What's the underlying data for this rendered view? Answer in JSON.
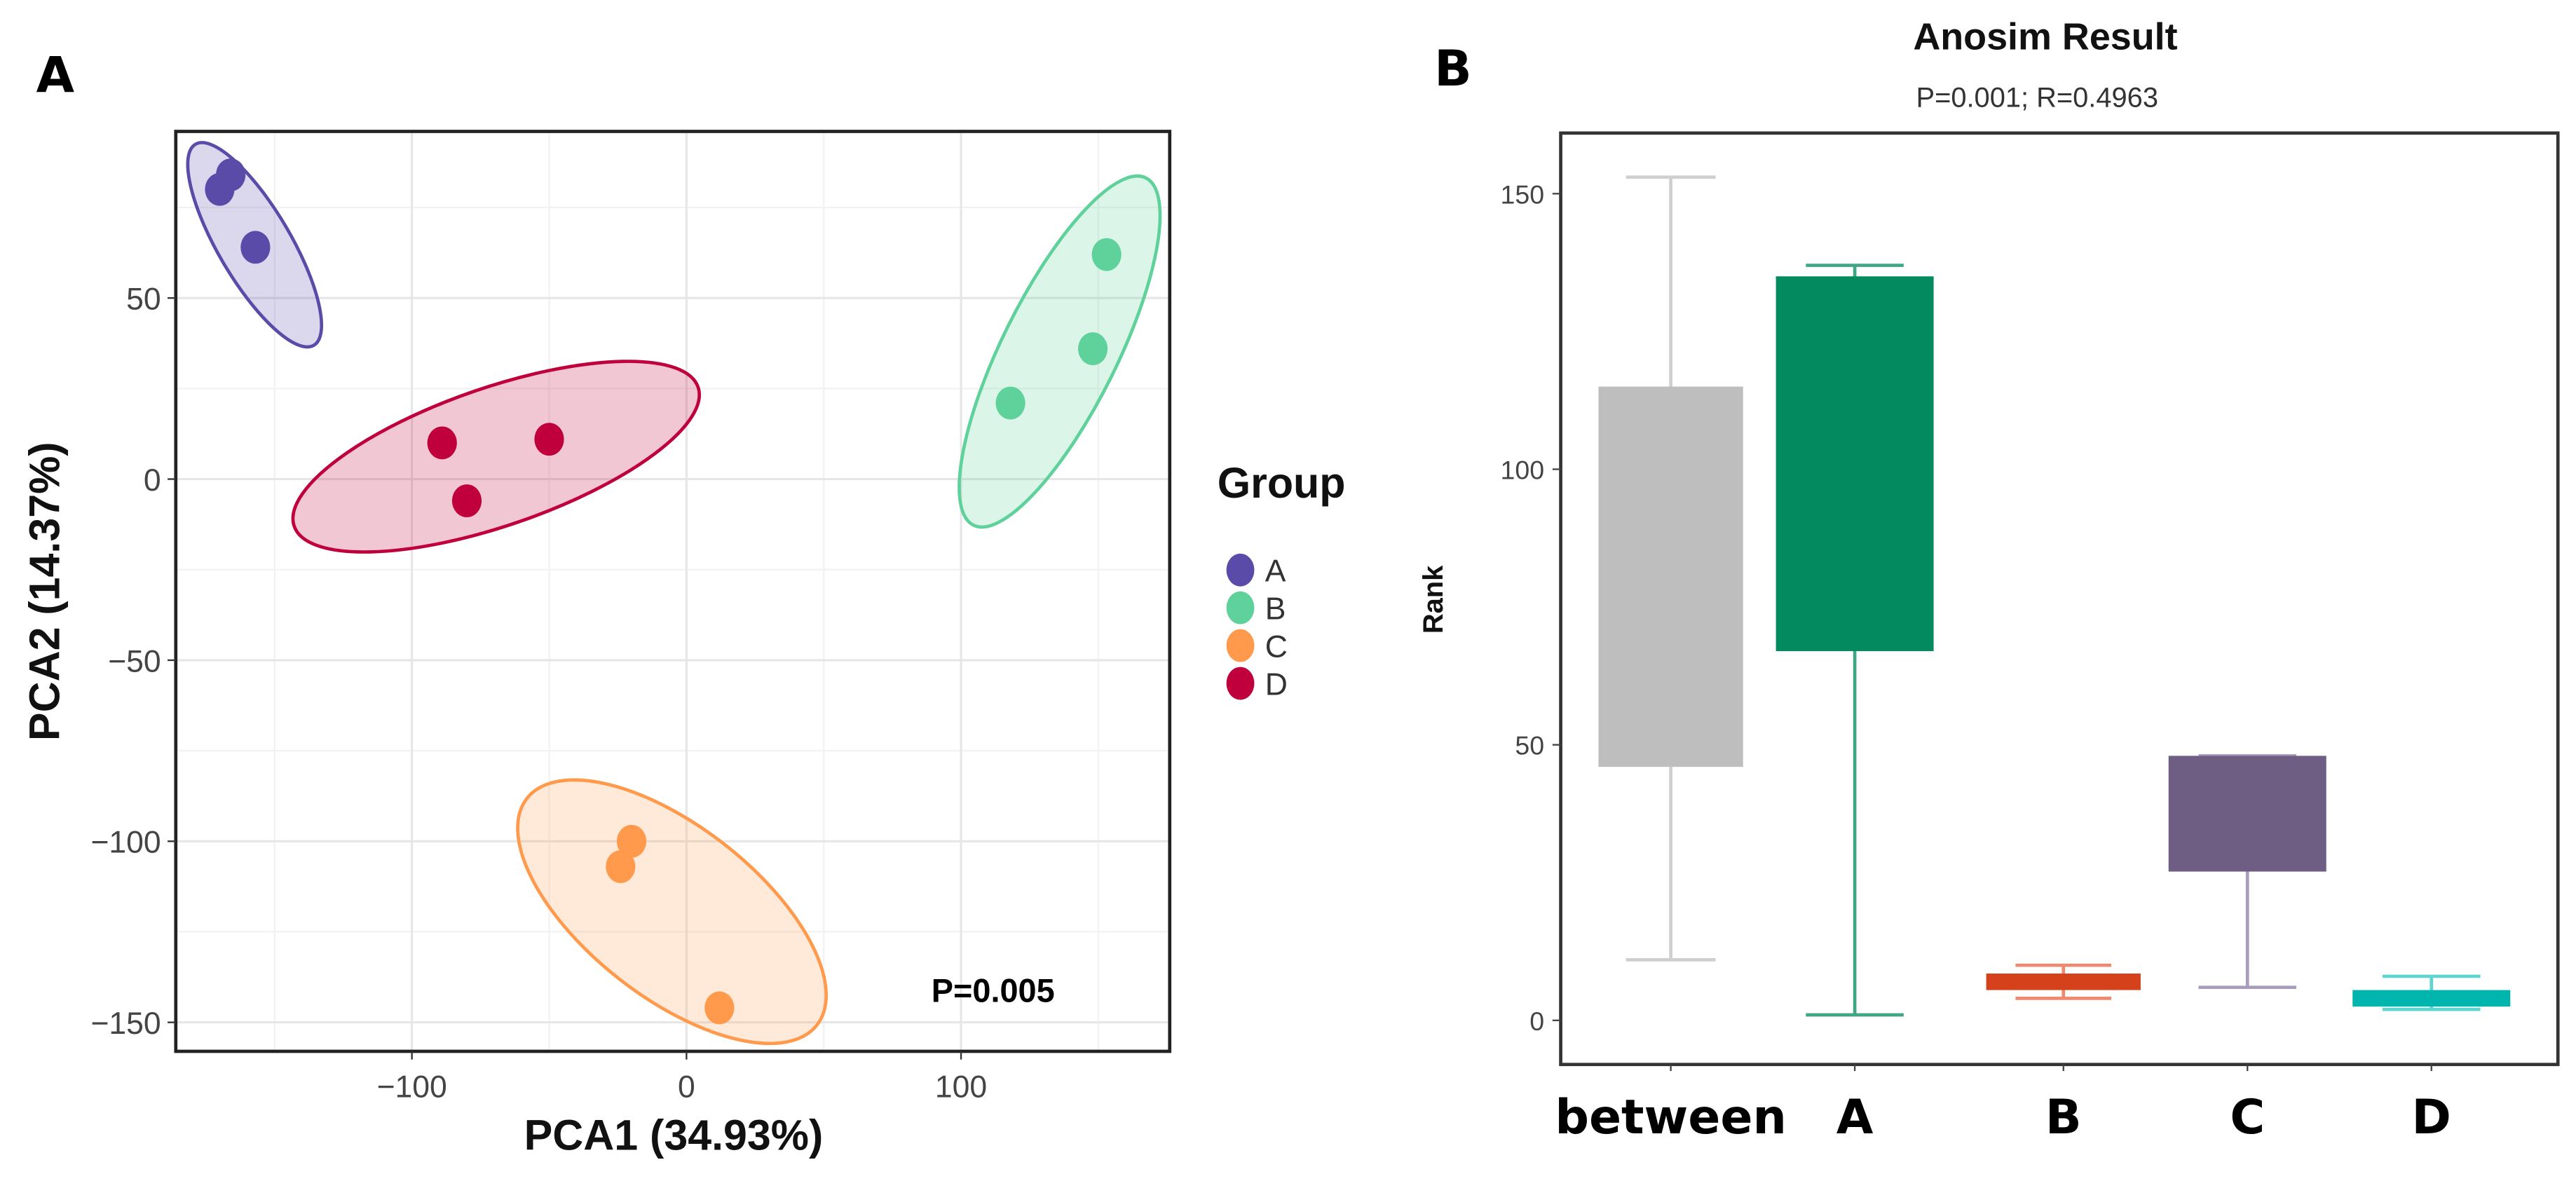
{
  "panel_labels": [
    "A",
    "B"
  ],
  "chart_data": [
    {
      "type": "scatter",
      "title": "",
      "xlabel": "PCA1 (34.93%)",
      "ylabel": "PCA2 (14.37%)",
      "xlim": [
        -186,
        176
      ],
      "ylim": [
        -158,
        96
      ],
      "xticks": [
        -100,
        0,
        100
      ],
      "yticks": [
        50,
        0,
        -50,
        -100,
        -150
      ],
      "grid": true,
      "annotation": "P=0.005",
      "legend": {
        "title": "Group",
        "placement": "right",
        "entries": [
          "A",
          "B",
          "C",
          "D"
        ]
      },
      "colors": {
        "A": "#5B4BA8",
        "B": "#5FD19B",
        "C": "#FF9A4D",
        "D": "#C0003C"
      },
      "series": [
        {
          "name": "A",
          "points": [
            [
              -166,
              84
            ],
            [
              -170,
              80
            ],
            [
              -157,
              64
            ]
          ]
        },
        {
          "name": "B",
          "points": [
            [
              118,
              21
            ],
            [
              148,
              36
            ],
            [
              153,
              62
            ]
          ]
        },
        {
          "name": "C",
          "points": [
            [
              -20,
              -100
            ],
            [
              -24,
              -107
            ],
            [
              12,
              -146
            ]
          ]
        },
        {
          "name": "D",
          "points": [
            [
              -89,
              10
            ],
            [
              -50,
              11
            ],
            [
              -80,
              -6
            ]
          ]
        }
      ]
    },
    {
      "type": "box",
      "title": "Anosim Result",
      "subtitle": "P=0.001; R=0.4963",
      "xlabel": "",
      "ylabel": "Rank",
      "ylim": [
        -8,
        161
      ],
      "yticks": [
        0,
        50,
        100,
        150
      ],
      "categories": [
        "between",
        "A",
        "B",
        "C",
        "D"
      ],
      "boxes": [
        {
          "name": "between",
          "min": 11,
          "q1": 46,
          "q3": 115,
          "max": 153,
          "color": "#BEBEBE",
          "whisker_color": "#CFCFCF"
        },
        {
          "name": "A",
          "min": 1,
          "q1": 67,
          "q3": 135,
          "max": 137,
          "color": "#048A5F",
          "whisker_color": "#3FA583"
        },
        {
          "name": "B",
          "min": 4,
          "q1": 5.5,
          "q3": 8.5,
          "max": 10,
          "color": "#D4411A",
          "whisker_color": "#EE8A6E"
        },
        {
          "name": "C",
          "min": 6,
          "q1": 27,
          "q3": 48,
          "max": 48,
          "color": "#6F5E84",
          "whisker_color": "#A99CBD"
        },
        {
          "name": "D",
          "min": 2,
          "q1": 2.5,
          "q3": 5.5,
          "max": 8,
          "color": "#00B5AE",
          "whisker_color": "#5ED6D0"
        }
      ]
    }
  ]
}
